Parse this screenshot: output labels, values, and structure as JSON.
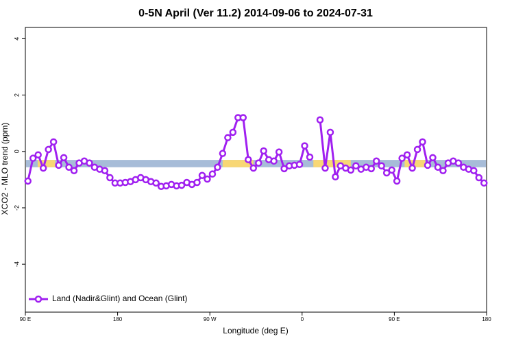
{
  "chart_data": {
    "type": "line",
    "title": "0-5N April (Ver 11.2)   2014-09-06 to 2024-07-31",
    "x_label": "Longitude (deg E)",
    "y_label": "XCO2 - MLO trend (ppm)",
    "xlim": [
      90,
      540
    ],
    "xticks": [
      {
        "value": 90,
        "label": "90 E"
      },
      {
        "value": 180,
        "label": "180"
      },
      {
        "value": 270,
        "label": "90 W"
      },
      {
        "value": 360,
        "label": "0"
      },
      {
        "value": 450,
        "label": "90 E"
      },
      {
        "value": 540,
        "label": "180"
      }
    ],
    "ylim": [
      -5.7,
      4.4
    ],
    "yticks": [
      4,
      2,
      0,
      -2,
      -4
    ],
    "legend": "bottom-left",
    "band": {
      "range": [
        -0.3,
        -0.56
      ],
      "color": "#a7bcd8",
      "segments": [
        {
          "x": [
            102,
            119
          ],
          "color": "#f8d775"
        },
        {
          "x": [
            282.5,
            312.5
          ],
          "color": "#f8d775"
        },
        {
          "x": [
            371,
            407.5
          ],
          "color": "#f8d775"
        },
        {
          "x": [
            460,
            480
          ],
          "color": "#f8d775"
        }
      ]
    },
    "x": [
      92.5,
      97.5,
      102.5,
      107.5,
      112.5,
      117.5,
      122.5,
      127.5,
      132.5,
      137.5,
      142.5,
      147.5,
      152.5,
      157.5,
      162.5,
      167.5,
      172.5,
      177.5,
      182.5,
      187.5,
      192.5,
      197.5,
      202.5,
      207.5,
      212.5,
      217.5,
      222.5,
      227.5,
      232.5,
      237.5,
      242.5,
      247.5,
      252.5,
      257.5,
      262.5,
      267.5,
      272.5,
      277.5,
      282.5,
      287.5,
      292.5,
      297.5,
      302.5,
      307.5,
      312.5,
      317.5,
      322.5,
      327.5,
      332.5,
      337.5,
      342.5,
      347.5,
      352.5,
      357.5,
      362.5,
      367.5,
      372.5,
      377.5,
      382.5,
      387.5,
      392.5,
      397.5,
      402.5,
      407.5,
      412.5,
      417.5,
      422.5,
      427.5,
      432.5,
      437.5,
      442.5,
      447.5,
      452.5,
      457.5,
      462.5,
      467.5,
      472.5,
      477.5,
      482.5,
      487.5,
      492.5,
      497.5,
      502.5,
      507.5,
      512.5,
      517.5,
      522.5,
      527.5,
      532.5,
      537.5
    ],
    "series": [
      {
        "name": "Land (Nadir&Glint) and Ocean (Glint)",
        "color": "#a020f0",
        "values": [
          -1.05,
          -0.24,
          -0.12,
          -0.59,
          0.07,
          0.34,
          -0.49,
          -0.22,
          -0.56,
          -0.68,
          -0.41,
          -0.34,
          -0.41,
          -0.56,
          -0.63,
          -0.68,
          -0.93,
          -1.12,
          -1.12,
          -1.1,
          -1.07,
          -1.0,
          -0.93,
          -1.0,
          -1.07,
          -1.12,
          -1.24,
          -1.22,
          -1.17,
          -1.22,
          -1.2,
          -1.1,
          -1.17,
          -1.1,
          -0.85,
          -0.98,
          -0.8,
          -0.56,
          -0.07,
          0.49,
          0.68,
          1.2,
          1.2,
          -0.29,
          -0.59,
          -0.41,
          0.02,
          -0.29,
          -0.34,
          -0.02,
          -0.61,
          -0.51,
          -0.49,
          -0.46,
          0.2,
          -0.2,
          null,
          1.12,
          -0.59,
          0.68,
          -0.9,
          -0.51,
          -0.59,
          -0.66,
          -0.51,
          -0.63,
          -0.56,
          -0.61,
          -0.34,
          -0.51,
          -0.76,
          -0.66,
          -1.05,
          -0.24,
          -0.12,
          -0.59,
          0.07,
          0.34,
          -0.49,
          -0.22,
          -0.56,
          -0.68,
          -0.41,
          -0.34,
          -0.41,
          -0.56,
          -0.63,
          -0.68,
          -0.93,
          -1.12
        ]
      }
    ]
  }
}
